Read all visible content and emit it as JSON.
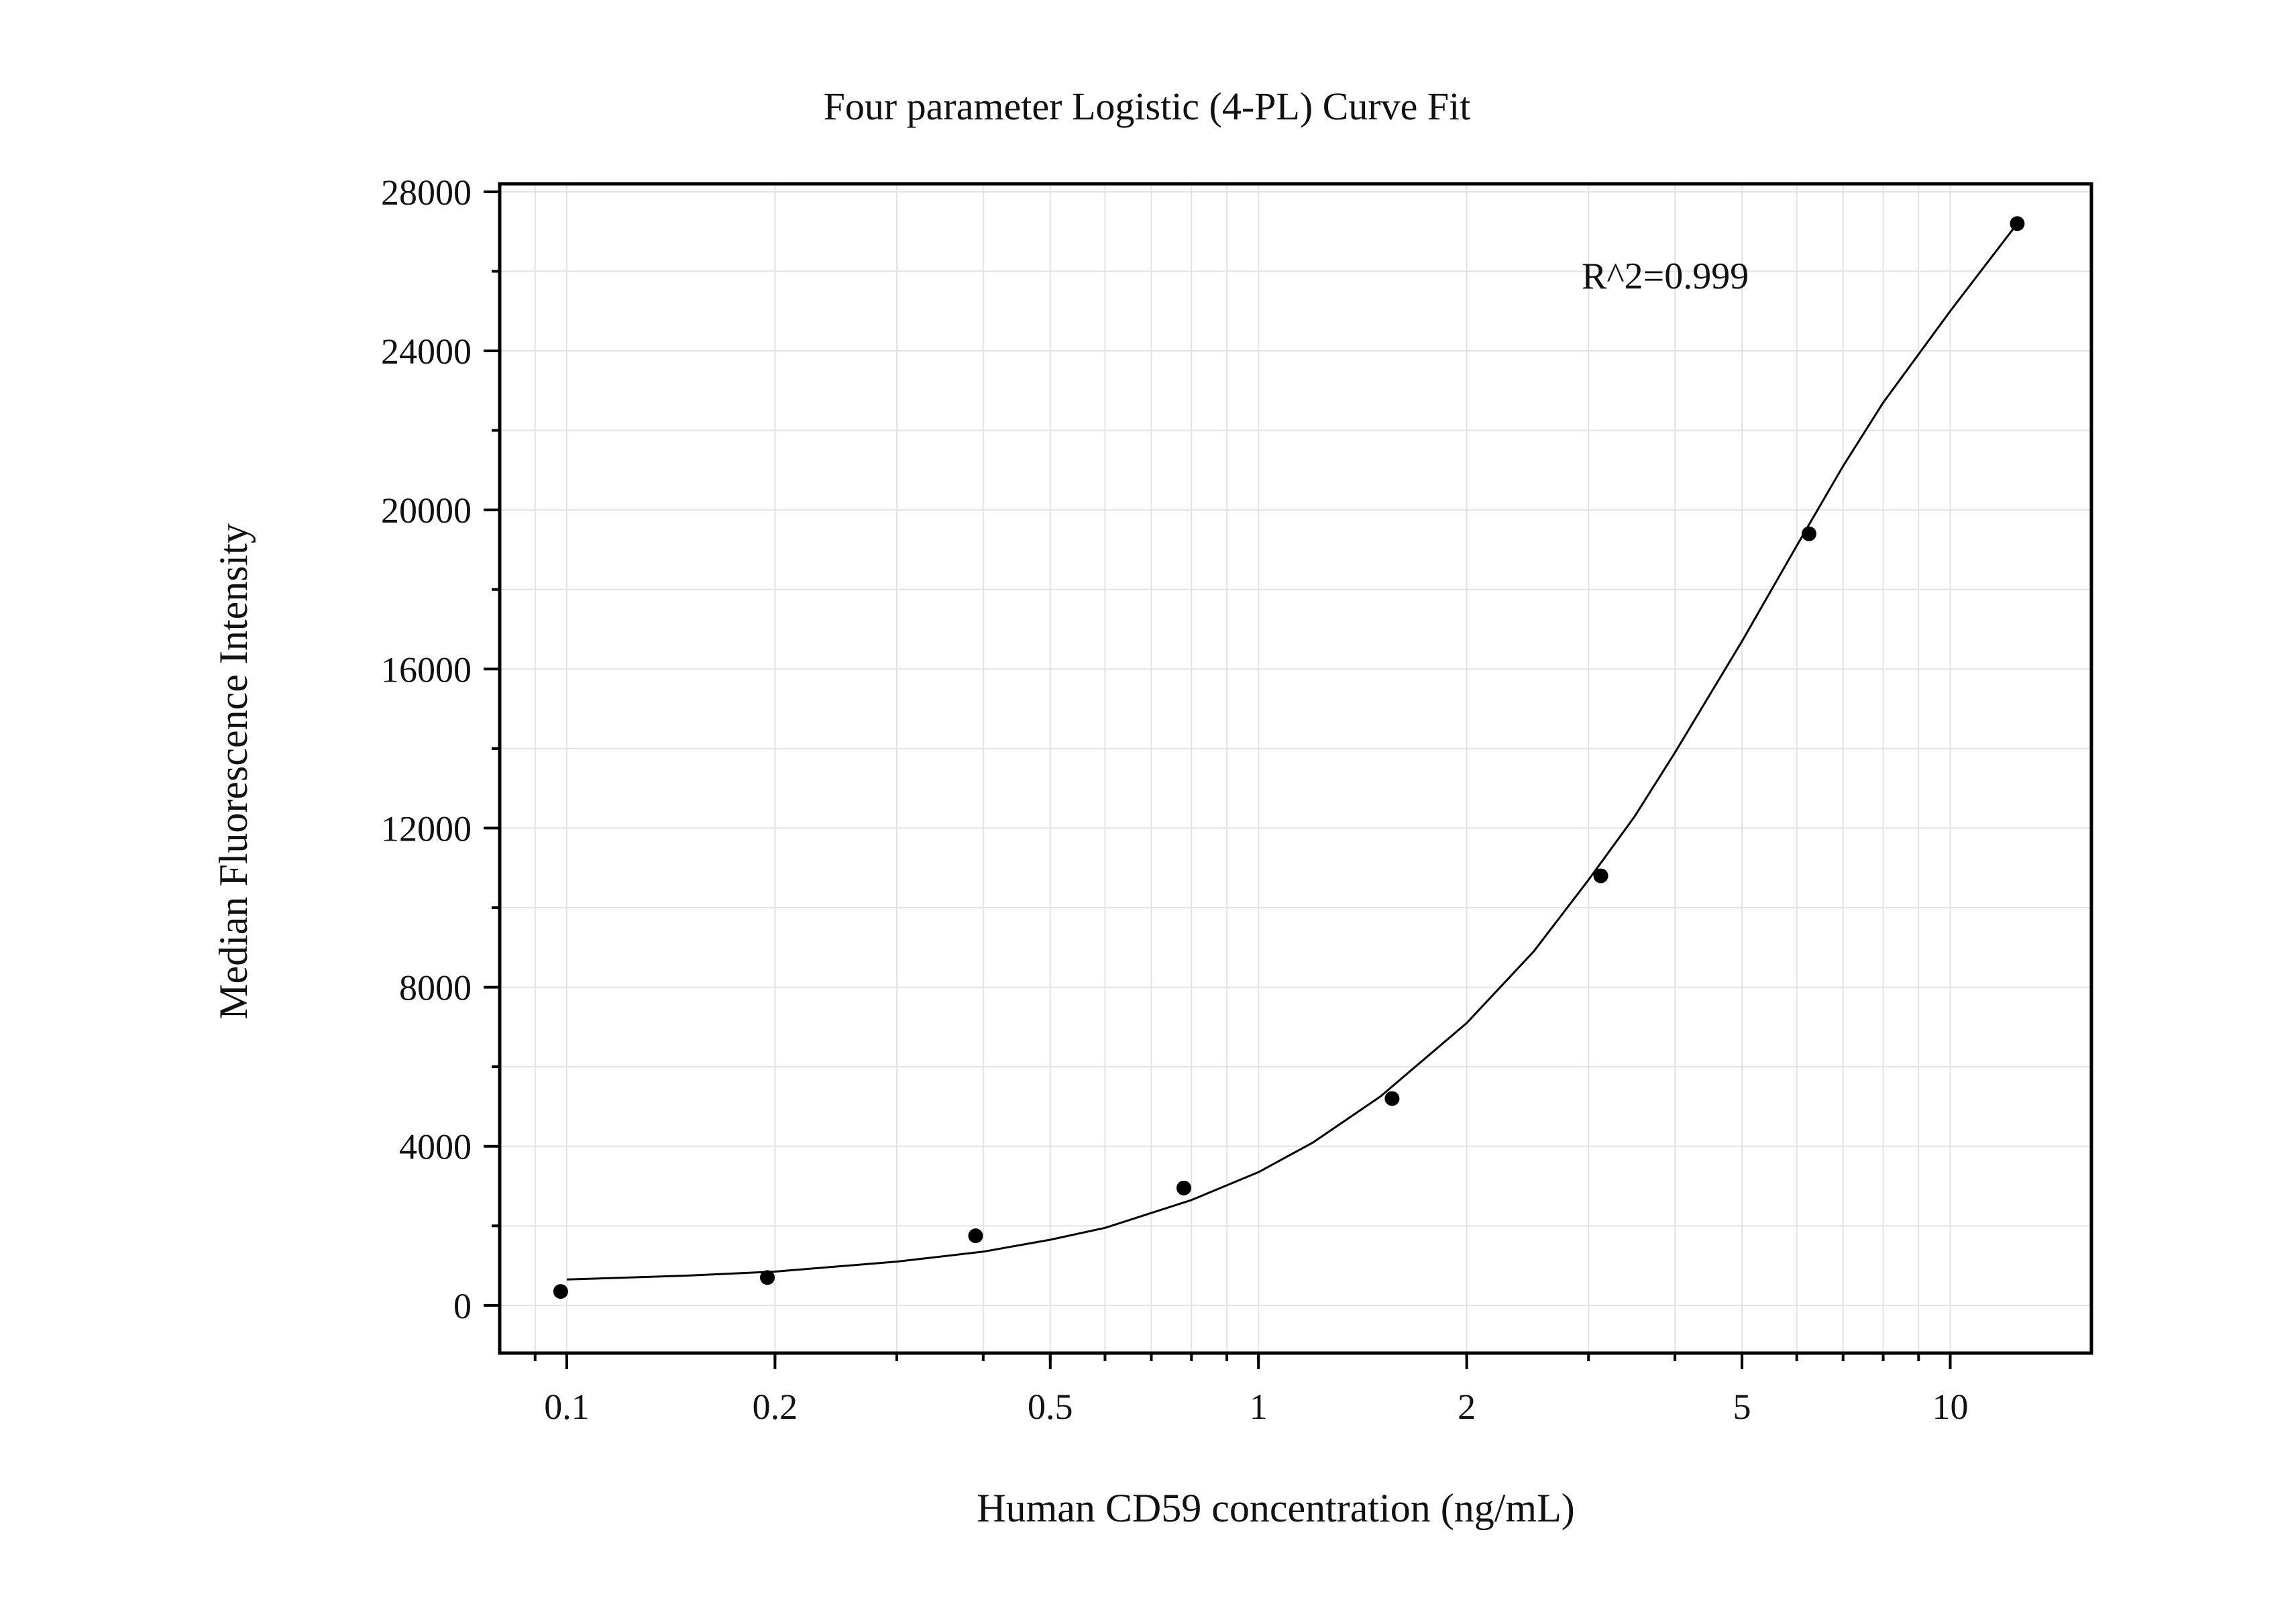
{
  "chart_data": {
    "type": "scatter",
    "title": "Four parameter Logistic (4-PL) Curve Fit",
    "xlabel": "Human CD59 concentration (ng/mL)",
    "ylabel": "Median Fluorescence Intensity",
    "x_scale": "log",
    "xlim": [
      0.08,
      16
    ],
    "ylim": [
      -1200,
      28200
    ],
    "x_ticks": [
      0.1,
      0.2,
      0.5,
      1,
      2,
      5,
      10
    ],
    "x_tick_labels": [
      "0.1",
      "0.2",
      "0.5",
      "1",
      "2",
      "5",
      "10"
    ],
    "y_ticks": [
      0,
      4000,
      8000,
      12000,
      16000,
      20000,
      24000,
      28000
    ],
    "y_tick_labels": [
      "0",
      "4000",
      "8000",
      "12000",
      "16000",
      "20000",
      "24000",
      "28000"
    ],
    "grid": true,
    "annotation": "R^2=0.999",
    "series": [
      {
        "x": [
          0.098,
          0.195,
          0.39,
          0.78,
          1.56,
          3.125,
          6.25,
          12.5
        ],
        "y": [
          350,
          700,
          1750,
          2950,
          5200,
          10800,
          19400,
          27200
        ]
      }
    ],
    "fit_curve": {
      "model": "4PL",
      "x": [
        0.1,
        0.15,
        0.2,
        0.3,
        0.4,
        0.5,
        0.6,
        0.8,
        1.0,
        1.2,
        1.5,
        2.0,
        2.5,
        3.0,
        3.5,
        4.0,
        5.0,
        6.0,
        7.0,
        8.0,
        10.0,
        12.5
      ],
      "y": [
        650,
        750,
        850,
        1100,
        1350,
        1650,
        1950,
        2650,
        3350,
        4100,
        5250,
        7100,
        8900,
        10700,
        12300,
        13900,
        16700,
        19100,
        21100,
        22700,
        25000,
        27200
      ]
    },
    "colors": {
      "points": "#000000",
      "curve": "#000000",
      "grid": "#e3e3e3",
      "frame": "#000000"
    }
  }
}
